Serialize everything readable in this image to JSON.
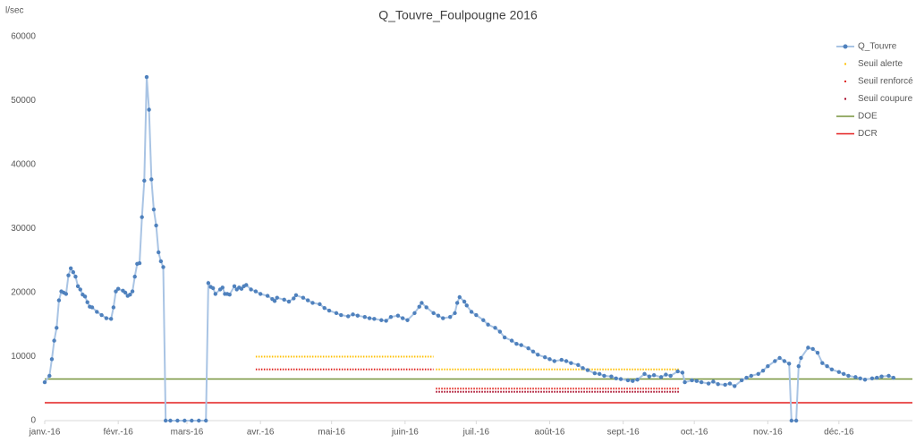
{
  "chart_data": {
    "type": "line",
    "title": "Q_Touvre_Foulpougne 2016",
    "y_label": "l/sec",
    "xlim": [
      0,
      366
    ],
    "xticks": [
      {
        "value": 0,
        "label": "janv.-16"
      },
      {
        "value": 31,
        "label": "févr.-16"
      },
      {
        "value": 60,
        "label": "mars-16"
      },
      {
        "value": 91,
        "label": "avr.-16"
      },
      {
        "value": 121,
        "label": "mai-16"
      },
      {
        "value": 152,
        "label": "juin-16"
      },
      {
        "value": 182,
        "label": "juil.-16"
      },
      {
        "value": 213,
        "label": "août-16"
      },
      {
        "value": 244,
        "label": "sept.-16"
      },
      {
        "value": 274,
        "label": "oct.-16"
      },
      {
        "value": 305,
        "label": "nov.-16"
      },
      {
        "value": 335,
        "label": "déc.-16"
      }
    ],
    "ylim": [
      0,
      60000
    ],
    "yticks": [
      0,
      10000,
      20000,
      30000,
      40000,
      50000,
      60000
    ],
    "grid": false,
    "legend": "upper right",
    "series": [
      {
        "name": "Q_Touvre",
        "color": "#4f81bd",
        "line_color": "#a9c4e4",
        "marker": "circle-line",
        "x": [
          0,
          2,
          3,
          4,
          5,
          6,
          7,
          8,
          9,
          10,
          11,
          12,
          13,
          14,
          15,
          16,
          17,
          18,
          19,
          20,
          22,
          24,
          26,
          28,
          29,
          30,
          31,
          33,
          34,
          35,
          36,
          37,
          38,
          39,
          40,
          41,
          42,
          43,
          44,
          45,
          46,
          47,
          48,
          49,
          50,
          51,
          53,
          56,
          59,
          62,
          65,
          68,
          69,
          70,
          71,
          72,
          74,
          75,
          76,
          77,
          78,
          80,
          81,
          82,
          83,
          84,
          85,
          87,
          89,
          91,
          94,
          96,
          97,
          98,
          101,
          103,
          105,
          106,
          109,
          111,
          113,
          116,
          118,
          120,
          123,
          125,
          128,
          130,
          132,
          135,
          137,
          139,
          142,
          144,
          146,
          149,
          151,
          153,
          156,
          158,
          159,
          161,
          164,
          166,
          168,
          171,
          173,
          174,
          175,
          177,
          178,
          180,
          182,
          185,
          187,
          190,
          192,
          194,
          197,
          199,
          201,
          204,
          206,
          208,
          211,
          213,
          215,
          218,
          220,
          222,
          225,
          227,
          229,
          232,
          234,
          236,
          239,
          241,
          243,
          246,
          248,
          250,
          253,
          255,
          257,
          260,
          262,
          264,
          267,
          269,
          270,
          273,
          275,
          277,
          280,
          282,
          284,
          287,
          289,
          291,
          294,
          296,
          298,
          301,
          303,
          305,
          308,
          310,
          312,
          314,
          315,
          317,
          318,
          319,
          322,
          324,
          326,
          328,
          330,
          332,
          335,
          337,
          339,
          342,
          344,
          346,
          349,
          351,
          353,
          356,
          358
        ],
        "values": [
          6000,
          7000,
          9600,
          12500,
          14500,
          18800,
          20200,
          20000,
          19800,
          22700,
          23800,
          23200,
          22500,
          21000,
          20500,
          19700,
          19400,
          18500,
          17800,
          17700,
          17000,
          16500,
          16000,
          15900,
          17700,
          20200,
          20600,
          20300,
          20000,
          19500,
          19700,
          20200,
          22500,
          24500,
          24600,
          31800,
          37500,
          53700,
          48600,
          37700,
          33000,
          30500,
          26300,
          24900,
          24000,
          0,
          0,
          0,
          0,
          0,
          0,
          0,
          21500,
          20900,
          20700,
          19800,
          20500,
          20800,
          19800,
          19800,
          19700,
          21000,
          20500,
          20800,
          20600,
          21000,
          21200,
          20500,
          20200,
          19800,
          19500,
          19000,
          18700,
          19200,
          18900,
          18600,
          19100,
          19600,
          19200,
          18800,
          18400,
          18200,
          17600,
          17200,
          16800,
          16500,
          16300,
          16600,
          16400,
          16200,
          16000,
          15900,
          15700,
          15600,
          16200,
          16400,
          16000,
          15700,
          16800,
          17800,
          18400,
          17700,
          16800,
          16400,
          16000,
          16200,
          16800,
          18400,
          19300,
          18600,
          18000,
          17000,
          16500,
          15700,
          15000,
          14500,
          13900,
          13000,
          12500,
          12000,
          11800,
          11300,
          10800,
          10300,
          9900,
          9600,
          9300,
          9500,
          9300,
          9000,
          8700,
          8200,
          7900,
          7400,
          7300,
          7000,
          6900,
          6600,
          6500,
          6300,
          6200,
          6400,
          7300,
          6900,
          7100,
          6800,
          7200,
          7000,
          7700,
          7500,
          6000,
          6300,
          6200,
          6000,
          5800,
          6100,
          5700,
          5600,
          5800,
          5400,
          6300,
          6700,
          7000,
          7300,
          7800,
          8500,
          9300,
          9800,
          9300,
          8900,
          0,
          0,
          8500,
          9800,
          11400,
          11200,
          10600,
          9000,
          8500,
          8000,
          7600,
          7300,
          7000,
          6800,
          6600,
          6400,
          6600,
          6700,
          6900,
          7000,
          6700
        ]
      },
      {
        "name": "Seuil alerte",
        "color": "#ffc000",
        "marker": "dotted",
        "x": [
          89,
          164,
          164,
          165,
          268
        ],
        "values": [
          10000,
          10000,
          null,
          8000,
          8000
        ]
      },
      {
        "name": "Seuil renforcé",
        "color": "#e0201b",
        "marker": "dotted",
        "x": [
          89,
          164,
          164,
          165,
          268
        ],
        "values": [
          8000,
          8000,
          null,
          5000,
          5000
        ]
      },
      {
        "name": "Seuil coupure",
        "color": "#a50021",
        "marker": "dotted",
        "x": [
          165,
          268
        ],
        "values": [
          4500,
          4500
        ]
      },
      {
        "name": "DOE",
        "color": "#77933c",
        "marker": "line",
        "x": [
          0,
          366
        ],
        "values": [
          6500,
          6500
        ]
      },
      {
        "name": "DCR",
        "color": "#e41e1e",
        "marker": "line",
        "x": [
          0,
          366
        ],
        "values": [
          2800,
          2800
        ]
      }
    ]
  }
}
